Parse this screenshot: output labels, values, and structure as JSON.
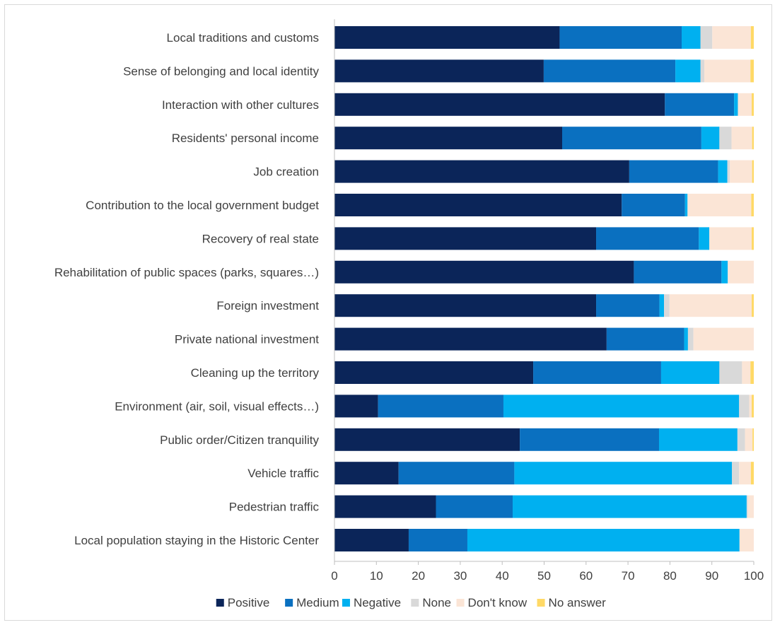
{
  "chart_data": {
    "type": "bar",
    "orientation": "horizontal",
    "stacked": true,
    "title": "",
    "xlabel": "",
    "ylabel": "",
    "xlim": [
      0,
      100
    ],
    "x_ticks": [
      "0",
      "10",
      "20",
      "30",
      "40",
      "50",
      "60",
      "70",
      "80",
      "90",
      "100"
    ],
    "grid": false,
    "legend_position": "bottom",
    "categories": [
      "Local traditions and customs",
      "Sense of belonging and local identity",
      "Interaction with other cultures",
      "Residents' personal income",
      "Job creation",
      "Contribution to the local government budget",
      "Recovery of real state",
      "Rehabilitation of public spaces (parks, squares…)",
      "Foreign investment",
      "Private national investment",
      "Cleaning up the territory",
      "Environment (air, soil, visual effects…)",
      "Public order/Citizen tranquility",
      "Vehicle traffic",
      "Pedestrian traffic",
      "Local population staying in the Historic Center"
    ],
    "series": [
      {
        "name": "Positive",
        "color": "#0b2559",
        "values": [
          53.7,
          49.9,
          78.8,
          54.3,
          70.3,
          68.5,
          62.4,
          71.4,
          62.4,
          64.9,
          47.4,
          10.4,
          44.2,
          15.3,
          24.2,
          17.7
        ]
      },
      {
        "name": "Medium",
        "color": "#0a70c0",
        "values": [
          29.1,
          31.4,
          16.5,
          33.2,
          21.2,
          15.1,
          24.5,
          20.9,
          15.1,
          18.5,
          30.5,
          29.9,
          33.2,
          27.6,
          18.3,
          14.0
        ]
      },
      {
        "name": "Negative",
        "color": "#00b0f0",
        "values": [
          4.5,
          6.0,
          0.9,
          4.3,
          2.2,
          0.6,
          2.5,
          1.5,
          1.1,
          0.9,
          13.9,
          56.2,
          18.7,
          51.9,
          55.8,
          64.9
        ]
      },
      {
        "name": "None",
        "color": "#d9d9d9",
        "values": [
          2.8,
          0.9,
          0.0,
          2.9,
          0.6,
          0.0,
          0.0,
          0.0,
          1.3,
          1.3,
          5.4,
          2.4,
          1.8,
          1.7,
          0.3,
          0.0
        ]
      },
      {
        "name": "Don't know",
        "color": "#fbe5d6",
        "values": [
          9.2,
          11.0,
          3.3,
          4.9,
          5.3,
          15.2,
          10.1,
          6.2,
          19.6,
          14.4,
          2.0,
          0.6,
          1.8,
          2.8,
          1.4,
          3.4
        ]
      },
      {
        "name": "No answer",
        "color": "#ffd966",
        "values": [
          0.7,
          0.8,
          0.5,
          0.4,
          0.4,
          0.6,
          0.5,
          0.0,
          0.5,
          0.0,
          0.8,
          0.5,
          0.3,
          0.7,
          0.0,
          0.0
        ]
      }
    ]
  }
}
